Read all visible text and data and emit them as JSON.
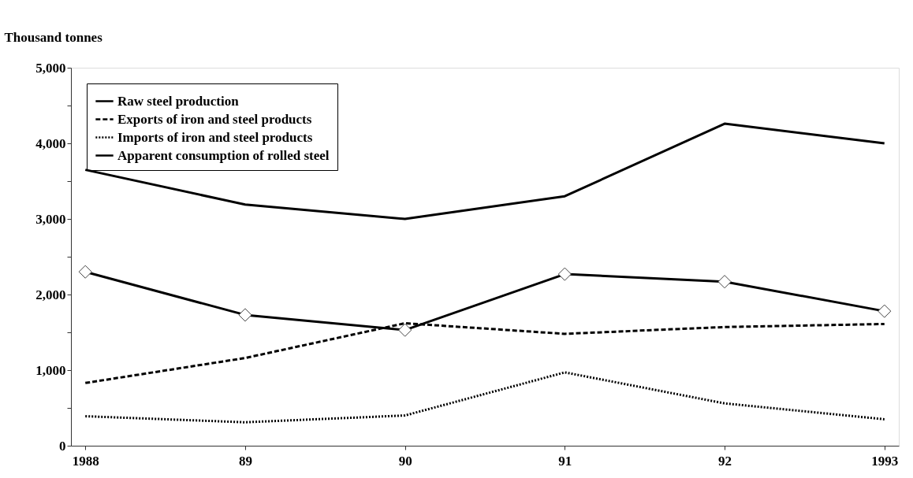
{
  "chart_data": {
    "type": "line",
    "ylabel": "Thousand tonnes",
    "categories": [
      "1988",
      "89",
      "90",
      "91",
      "92",
      "1993"
    ],
    "series": [
      {
        "name": "Raw steel production",
        "color": "#000000",
        "line_style": "solid",
        "marker": "none",
        "values": [
          3650,
          3190,
          3000,
          3300,
          4260,
          4000
        ]
      },
      {
        "name": "Exports of iron and steel products",
        "color": "#000000",
        "line_style": "dashed",
        "marker": "none",
        "values": [
          830,
          1160,
          1620,
          1480,
          1570,
          1610
        ]
      },
      {
        "name": "Imports of iron and steel products",
        "color": "#000000",
        "line_style": "dotted",
        "marker": "none",
        "values": [
          390,
          310,
          400,
          970,
          560,
          350
        ]
      },
      {
        "name": "Apparent consumption of rolled steel",
        "color": "#000000",
        "line_style": "solid",
        "marker": "diamond",
        "values": [
          2300,
          1730,
          1530,
          2270,
          2170,
          1780
        ]
      }
    ],
    "ylim": [
      0,
      5000
    ],
    "yticks": [
      0,
      {
        "value": 500,
        "label": null
      },
      {
        "value": 1000,
        "label": "1,000"
      },
      {
        "value": 1500,
        "label": null
      },
      {
        "value": 2000,
        "label": "2,000"
      },
      {
        "value": 2500,
        "label": null
      },
      {
        "value": 3000,
        "label": "3,000"
      },
      {
        "value": 3500,
        "label": null
      },
      {
        "value": 4000,
        "label": "4,000"
      },
      {
        "value": 4500,
        "label": null
      },
      {
        "value": 5000,
        "label": "5,000"
      }
    ],
    "grid": false,
    "legend": "top left"
  }
}
